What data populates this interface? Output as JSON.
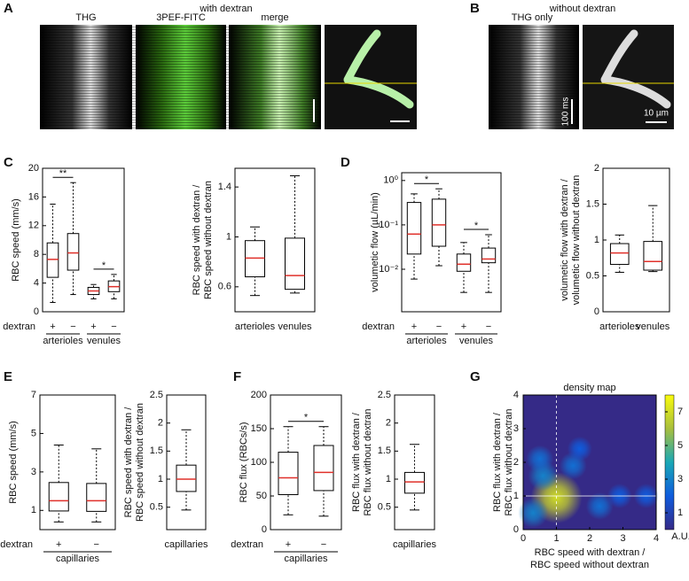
{
  "panel_labels": [
    "A",
    "B",
    "C",
    "D",
    "E",
    "F",
    "G"
  ],
  "images": {
    "title_a": "with dextran",
    "labels_a": [
      "THG",
      "3PEF-FITC",
      "merge"
    ],
    "title_b": "without dextran",
    "label_b": "THG only",
    "scale_time": "100 ms",
    "scale_space": "10 µm"
  },
  "chart_data": [
    {
      "type": "box",
      "ylabel": [
        "RBC speed (mm/s)"
      ],
      "ylim": [
        0,
        20
      ],
      "yticks": [
        0,
        4,
        8,
        12,
        16,
        20
      ],
      "categories": [
        "+",
        "−",
        "+",
        "−"
      ],
      "row_label": "dextran",
      "group_labels": [
        "arterioles",
        "venules"
      ],
      "significance": [
        "**",
        "*"
      ],
      "boxes": [
        {
          "whislo": 1.3,
          "q1": 4.8,
          "med": 7.3,
          "q3": 9.6,
          "whishi": 15
        },
        {
          "whislo": 2.4,
          "q1": 5.8,
          "med": 8.2,
          "q3": 10.9,
          "whishi": 18
        },
        {
          "whislo": 1.8,
          "q1": 2.4,
          "med": 2.9,
          "q3": 3.4,
          "whishi": 3.8
        },
        {
          "whislo": 1.8,
          "q1": 2.8,
          "med": 3.5,
          "q3": 4.3,
          "whishi": 5.2
        }
      ]
    },
    {
      "type": "box",
      "ylabel": [
        "RBC speed with dextran /",
        "RBC speed without dextran"
      ],
      "ylim": [
        0.4,
        1.55
      ],
      "yticks": [
        0.6,
        1,
        1.4
      ],
      "categories": [
        "arterioles",
        "venules"
      ],
      "boxes": [
        {
          "whislo": 0.53,
          "q1": 0.68,
          "med": 0.83,
          "q3": 0.97,
          "whishi": 1.08
        },
        {
          "whislo": 0.55,
          "q1": 0.58,
          "med": 0.69,
          "q3": 0.99,
          "whishi": 1.49
        }
      ]
    },
    {
      "type": "box",
      "log": true,
      "ylabel": [
        "volumetic flow (µL/min)"
      ],
      "ylim": [
        0.0011,
        1.5
      ],
      "yticks": [
        {
          "value": 0.01,
          "label": "10⁻²"
        },
        {
          "value": 0.1,
          "label": "10⁻¹"
        },
        {
          "value": 1,
          "label": "10⁰"
        }
      ],
      "categories": [
        "+",
        "−",
        "+",
        "−"
      ],
      "row_label": "dextran",
      "group_labels": [
        "arterioles",
        "venules"
      ],
      "significance": [
        "*",
        "*"
      ],
      "boxes": [
        {
          "whislo": 0.006,
          "q1": 0.022,
          "med": 0.062,
          "q3": 0.32,
          "whishi": 0.5
        },
        {
          "whislo": 0.012,
          "q1": 0.033,
          "med": 0.1,
          "q3": 0.38,
          "whishi": 0.65
        },
        {
          "whislo": 0.003,
          "q1": 0.009,
          "med": 0.013,
          "q3": 0.022,
          "whishi": 0.04
        },
        {
          "whislo": 0.003,
          "q1": 0.014,
          "med": 0.017,
          "q3": 0.03,
          "whishi": 0.06
        }
      ]
    },
    {
      "type": "box",
      "ylabel": [
        "volumetic flow with dextran /",
        "volumetic flow without dextran"
      ],
      "ylim": [
        0,
        2
      ],
      "yticks": [
        0,
        0.5,
        1,
        1.5,
        2
      ],
      "categories": [
        "arterioles",
        "venules"
      ],
      "boxes": [
        {
          "whislo": 0.55,
          "q1": 0.66,
          "med": 0.82,
          "q3": 0.95,
          "whishi": 1.07
        },
        {
          "whislo": 0.56,
          "q1": 0.58,
          "med": 0.7,
          "q3": 0.98,
          "whishi": 1.48
        }
      ]
    },
    {
      "type": "box",
      "ylabel": [
        "RBC speed (mm/s)"
      ],
      "ylim": [
        0,
        7
      ],
      "yticks": [
        1,
        3,
        5,
        7
      ],
      "categories": [
        "+",
        "−"
      ],
      "row_label": "dextran",
      "group_labels": [
        "capillaries"
      ],
      "boxes": [
        {
          "whislo": 0.4,
          "q1": 0.97,
          "med": 1.5,
          "q3": 2.45,
          "whishi": 4.4
        },
        {
          "whislo": 0.4,
          "q1": 0.95,
          "med": 1.5,
          "q3": 2.4,
          "whishi": 4.2
        }
      ]
    },
    {
      "type": "box",
      "ylabel": [
        "RBC speed with dextran /",
        "RBC speed without dextran"
      ],
      "ylim": [
        0.1,
        2.5
      ],
      "yticks": [
        0.5,
        1,
        1.5,
        2,
        2.5
      ],
      "categories": [
        "capillaries"
      ],
      "boxes": [
        {
          "whislo": 0.45,
          "q1": 0.78,
          "med": 1.0,
          "q3": 1.25,
          "whishi": 1.88
        }
      ]
    },
    {
      "type": "box",
      "ylabel": [
        "RBC flux (RBCs/s)"
      ],
      "ylim": [
        0,
        200
      ],
      "yticks": [
        0,
        50,
        100,
        150,
        200
      ],
      "categories": [
        "+",
        "−"
      ],
      "row_label": "dextran",
      "group_labels": [
        "capillaries"
      ],
      "significance": [
        "*"
      ],
      "boxes": [
        {
          "whislo": 22,
          "q1": 52,
          "med": 77,
          "q3": 115,
          "whishi": 153
        },
        {
          "whislo": 20,
          "q1": 58,
          "med": 85,
          "q3": 125,
          "whishi": 153
        }
      ]
    },
    {
      "type": "box",
      "ylabel": [
        "RBC flux with dextran /",
        "RBC flux without dextran"
      ],
      "ylim": [
        0.1,
        2.5
      ],
      "yticks": [
        0.5,
        1,
        1.5,
        2,
        2.5
      ],
      "categories": [
        "capillaries"
      ],
      "boxes": [
        {
          "whislo": 0.45,
          "q1": 0.75,
          "med": 0.95,
          "q3": 1.12,
          "whishi": 1.62
        }
      ]
    },
    {
      "type": "heatmap",
      "title": "density map",
      "xlabel": [
        "RBC speed with dextran /",
        "RBC speed without dextran"
      ],
      "ylabel": [
        "RBC flux with dextran /",
        "RBC flux without dextran"
      ],
      "xlim": [
        0,
        4
      ],
      "ylim": [
        0,
        4
      ],
      "xticks": [
        0,
        1,
        2,
        3,
        4
      ],
      "yticks": [
        0,
        1,
        2,
        3,
        4
      ],
      "colorbar": {
        "lim": [
          0,
          8
        ],
        "ticks": [
          1,
          3,
          5,
          7
        ],
        "label": "A.U."
      },
      "blobs": [
        {
          "x": 1.0,
          "y": 0.95,
          "density": 7
        },
        {
          "x": 0.3,
          "y": 0.5,
          "density": 3
        },
        {
          "x": 0.6,
          "y": 1.6,
          "density": 3
        },
        {
          "x": 0.5,
          "y": 2.1,
          "density": 2.5
        },
        {
          "x": 1.5,
          "y": 1.9,
          "density": 2.5
        },
        {
          "x": 1.7,
          "y": 2.4,
          "density": 2
        },
        {
          "x": 2.3,
          "y": 0.7,
          "density": 2.5
        },
        {
          "x": 2.9,
          "y": 1.0,
          "density": 2
        },
        {
          "x": 3.7,
          "y": 1.0,
          "density": 2
        }
      ]
    }
  ]
}
